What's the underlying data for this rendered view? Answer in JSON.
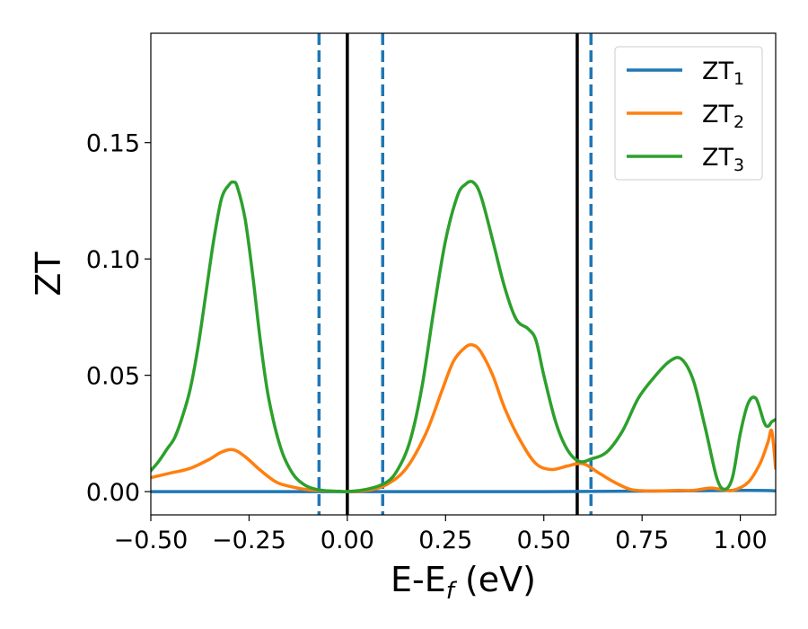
{
  "chart_data": {
    "type": "line",
    "title": "",
    "xlabel_main": "E-E",
    "xlabel_sub": "f",
    "xlabel_unit": " (eV)",
    "ylabel": "ZT",
    "xlim": [
      -0.5,
      1.09
    ],
    "ylim": [
      -0.01,
      0.197
    ],
    "xticks": [
      -0.5,
      -0.25,
      0.0,
      0.25,
      0.5,
      0.75,
      1.0
    ],
    "xtick_labels": [
      "−0.50",
      "−0.25",
      "0.00",
      "0.25",
      "0.50",
      "0.75",
      "1.00"
    ],
    "yticks": [
      0.0,
      0.05,
      0.1,
      0.15
    ],
    "ytick_labels": [
      "0.00",
      "0.05",
      "0.10",
      "0.15"
    ],
    "grid": false,
    "legend_position": "top-right",
    "vlines": [
      {
        "x": 0.0,
        "style": "solid",
        "color": "#000000"
      },
      {
        "x": 0.585,
        "style": "solid",
        "color": "#000000"
      },
      {
        "x": -0.072,
        "style": "dashed",
        "color": "#1f77b4"
      },
      {
        "x": 0.09,
        "style": "dashed",
        "color": "#1f77b4"
      },
      {
        "x": 0.62,
        "style": "dashed",
        "color": "#1f77b4"
      }
    ],
    "series": [
      {
        "name_main": "ZT",
        "name_sub": "1",
        "color": "#1f77b4",
        "x": [
          -0.5,
          0.0,
          0.5,
          1.0,
          1.09
        ],
        "y": [
          0.0,
          0.0,
          0.0,
          0.0005,
          0.0003
        ]
      },
      {
        "name_main": "ZT",
        "name_sub": "2",
        "color": "#ff7f0e",
        "x": [
          -0.5,
          -0.45,
          -0.4,
          -0.35,
          -0.32,
          -0.29,
          -0.26,
          -0.22,
          -0.18,
          -0.14,
          -0.1,
          -0.06,
          -0.02,
          0.0,
          0.05,
          0.1,
          0.15,
          0.2,
          0.24,
          0.27,
          0.3,
          0.32,
          0.34,
          0.37,
          0.4,
          0.44,
          0.48,
          0.52,
          0.56,
          0.6,
          0.64,
          0.68,
          0.72,
          0.76,
          0.8,
          0.84,
          0.88,
          0.92,
          0.95,
          0.98,
          1.02,
          1.05,
          1.07,
          1.08,
          1.09
        ],
        "y": [
          0.006,
          0.008,
          0.01,
          0.014,
          0.017,
          0.018,
          0.015,
          0.009,
          0.004,
          0.002,
          0.0008,
          0.0003,
          0.0001,
          0.0,
          0.0005,
          0.003,
          0.01,
          0.025,
          0.043,
          0.056,
          0.062,
          0.063,
          0.06,
          0.05,
          0.036,
          0.022,
          0.012,
          0.0095,
          0.011,
          0.012,
          0.008,
          0.004,
          0.001,
          0.0003,
          0.0003,
          0.0005,
          0.0005,
          0.0015,
          0.001,
          0.0005,
          0.004,
          0.012,
          0.021,
          0.026,
          0.01
        ]
      },
      {
        "name_main": "ZT",
        "name_sub": "3",
        "color": "#2ca02c",
        "x": [
          -0.5,
          -0.48,
          -0.46,
          -0.44,
          -0.42,
          -0.4,
          -0.38,
          -0.36,
          -0.34,
          -0.32,
          -0.3,
          -0.29,
          -0.28,
          -0.26,
          -0.24,
          -0.22,
          -0.2,
          -0.17,
          -0.14,
          -0.11,
          -0.08,
          -0.05,
          -0.02,
          0.0,
          0.05,
          0.1,
          0.13,
          0.16,
          0.19,
          0.22,
          0.25,
          0.28,
          0.3,
          0.32,
          0.34,
          0.37,
          0.4,
          0.43,
          0.46,
          0.48,
          0.5,
          0.53,
          0.56,
          0.59,
          0.62,
          0.66,
          0.7,
          0.74,
          0.78,
          0.82,
          0.85,
          0.88,
          0.91,
          0.94,
          0.96,
          0.98,
          1.0,
          1.02,
          1.04,
          1.06,
          1.07,
          1.08,
          1.09
        ],
        "y": [
          0.009,
          0.013,
          0.018,
          0.023,
          0.032,
          0.044,
          0.062,
          0.085,
          0.108,
          0.126,
          0.132,
          0.133,
          0.131,
          0.117,
          0.092,
          0.063,
          0.04,
          0.019,
          0.008,
          0.003,
          0.001,
          0.0003,
          0.0001,
          0.0,
          0.001,
          0.004,
          0.01,
          0.022,
          0.045,
          0.078,
          0.108,
          0.127,
          0.132,
          0.133,
          0.127,
          0.108,
          0.088,
          0.074,
          0.07,
          0.065,
          0.05,
          0.03,
          0.018,
          0.013,
          0.014,
          0.017,
          0.026,
          0.04,
          0.049,
          0.056,
          0.057,
          0.048,
          0.028,
          0.006,
          0.001,
          0.006,
          0.025,
          0.038,
          0.04,
          0.03,
          0.028,
          0.03,
          0.031
        ]
      }
    ]
  }
}
